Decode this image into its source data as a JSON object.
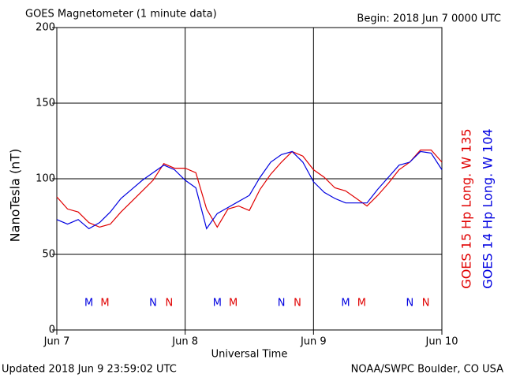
{
  "chart_data": {
    "type": "line",
    "title": "GOES Magnetometer (1 minute data)",
    "subtitle": "Begin:  2018 Jun 7 0000 UTC",
    "x_label": "Universal Time",
    "y_label": "NanoTesla (nT)",
    "footer_left": "Updated 2018 Jun  9 23:59:02 UTC",
    "footer_right": "NOAA/SWPC Boulder, CO USA",
    "x": [
      0,
      2,
      4,
      6,
      8,
      10,
      12,
      14,
      16,
      18,
      20,
      22,
      24,
      26,
      28,
      30,
      32,
      34,
      36,
      38,
      40,
      42,
      44,
      46,
      48,
      50,
      52,
      54,
      56,
      58,
      60,
      62,
      64,
      66,
      68,
      70,
      72
    ],
    "series": [
      {
        "name": "GOES 15 Hp  Long. W 135",
        "color": "#e00000",
        "values": [
          88,
          80,
          78,
          71,
          68,
          70,
          78,
          85,
          92,
          99,
          110,
          107,
          107,
          104,
          80,
          68,
          80,
          82,
          79,
          93,
          103,
          111,
          118,
          115,
          106,
          101,
          94,
          92,
          87,
          82,
          89,
          97,
          106,
          111,
          119,
          119,
          111
        ]
      },
      {
        "name": "GOES 14 Hp  Long. W 104",
        "color": "#0000e0",
        "values": [
          73,
          70,
          73,
          67,
          71,
          78,
          87,
          93,
          99,
          104,
          109,
          106,
          99,
          94,
          67,
          77,
          81,
          85,
          89,
          101,
          111,
          116,
          118,
          111,
          98,
          91,
          87,
          84,
          84,
          84,
          93,
          101,
          109,
          111,
          118,
          117,
          106
        ]
      }
    ],
    "annotations": [
      {
        "text": "M",
        "x": 6,
        "color": "#0000e0"
      },
      {
        "text": "M",
        "x": 9,
        "color": "#e00000"
      },
      {
        "text": "N",
        "x": 18,
        "color": "#0000e0"
      },
      {
        "text": "N",
        "x": 21,
        "color": "#e00000"
      },
      {
        "text": "M",
        "x": 30,
        "color": "#0000e0"
      },
      {
        "text": "M",
        "x": 33,
        "color": "#e00000"
      },
      {
        "text": "N",
        "x": 42,
        "color": "#0000e0"
      },
      {
        "text": "N",
        "x": 45,
        "color": "#e00000"
      },
      {
        "text": "M",
        "x": 54,
        "color": "#0000e0"
      },
      {
        "text": "M",
        "x": 57,
        "color": "#e00000"
      },
      {
        "text": "N",
        "x": 66,
        "color": "#0000e0"
      },
      {
        "text": "N",
        "x": 69,
        "color": "#e00000"
      }
    ],
    "xlim": [
      0,
      72
    ],
    "xticks": [
      {
        "value": 0,
        "label": "Jun 7"
      },
      {
        "value": 24,
        "label": "Jun 8"
      },
      {
        "value": 48,
        "label": "Jun 9"
      },
      {
        "value": 72,
        "label": "Jun 10"
      }
    ],
    "ylim": [
      0,
      200
    ],
    "yticks": [
      0,
      50,
      100,
      150,
      200
    ],
    "grid": true
  }
}
